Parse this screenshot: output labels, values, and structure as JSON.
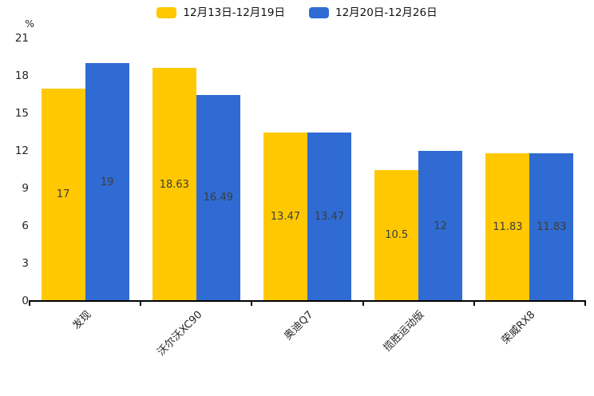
{
  "chart_data": {
    "type": "bar",
    "title": "",
    "unit_label": "%",
    "categories": [
      "发现",
      "沃尔沃XC90",
      "奥迪Q7",
      "揽胜运动版",
      "荣威RX8"
    ],
    "series": [
      {
        "name": "12月13日-12月19日",
        "color": "#FFC800",
        "values": [
          17,
          18.63,
          13.47,
          10.5,
          11.83
        ]
      },
      {
        "name": "12月20日-12月26日",
        "color": "#2F6BD3",
        "values": [
          19,
          16.49,
          13.47,
          12,
          11.83
        ]
      }
    ],
    "ylim": [
      0,
      21
    ],
    "yticks": [
      0,
      3,
      6,
      9,
      12,
      15,
      18,
      21
    ],
    "grid": false,
    "legend_position": "top",
    "value_labels": "center-of-bar",
    "axis_color": "#000000",
    "text_color": "#262626",
    "value_label_color": "#3d3d3d"
  }
}
